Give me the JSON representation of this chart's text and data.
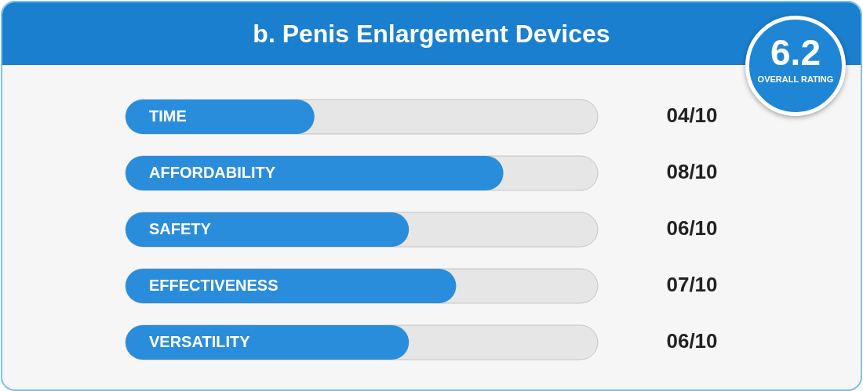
{
  "chart_data": {
    "type": "bar",
    "orientation": "horizontal",
    "title": "b. Penis Enlargement Devices",
    "categories": [
      "TIME",
      "AFFORDABILITY",
      "SAFETY",
      "EFFECTIVENESS",
      "VERSATILITY"
    ],
    "values": [
      0.4,
      0.8,
      0.6,
      0.7,
      0.6
    ],
    "value_labels": [
      "04/10",
      "08/10",
      "06/10",
      "07/10",
      "06/10"
    ],
    "color": "#2a8ddb",
    "xlim": [
      0,
      1
    ],
    "annotations": [
      "6.2",
      "OVERALL RATING"
    ],
    "legend": false
  }
}
